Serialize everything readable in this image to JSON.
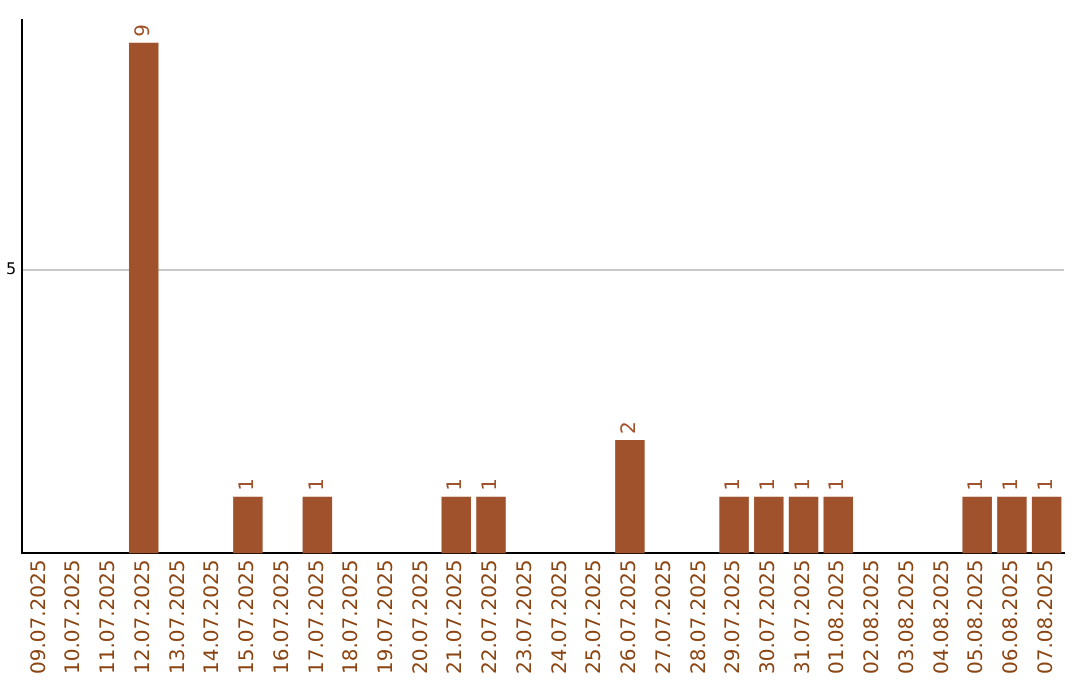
{
  "chart_data": {
    "type": "bar",
    "categories": [
      "09.07.2025",
      "10.07.2025",
      "11.07.2025",
      "12.07.2025",
      "13.07.2025",
      "14.07.2025",
      "15.07.2025",
      "16.07.2025",
      "17.07.2025",
      "18.07.2025",
      "19.07.2025",
      "20.07.2025",
      "21.07.2025",
      "22.07.2025",
      "23.07.2025",
      "24.07.2025",
      "25.07.2025",
      "26.07.2025",
      "27.07.2025",
      "28.07.2025",
      "29.07.2025",
      "30.07.2025",
      "31.07.2025",
      "01.08.2025",
      "02.08.2025",
      "03.08.2025",
      "04.08.2025",
      "05.08.2025",
      "06.08.2025",
      "07.08.2025"
    ],
    "values": [
      0,
      0,
      0,
      9,
      0,
      0,
      1,
      0,
      1,
      0,
      0,
      0,
      1,
      1,
      0,
      0,
      0,
      2,
      0,
      0,
      1,
      1,
      1,
      1,
      0,
      0,
      0,
      1,
      1,
      1
    ],
    "value_labels": [
      null,
      null,
      null,
      "9",
      null,
      null,
      "1",
      null,
      "1",
      null,
      null,
      null,
      "1",
      "1",
      null,
      null,
      null,
      "2",
      null,
      null,
      "1",
      "1",
      "1",
      "1",
      null,
      null,
      null,
      "1",
      "1",
      "1"
    ],
    "color": "#a0522d",
    "ylim": [
      0,
      9.4
    ],
    "yticks": [
      5
    ],
    "grid": "y"
  }
}
